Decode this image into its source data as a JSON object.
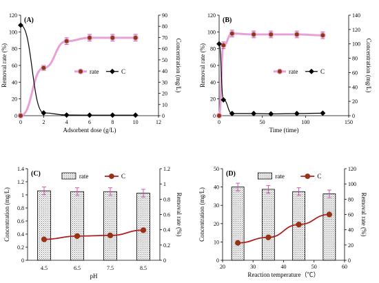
{
  "colors": {
    "rate_line": "#e8a0d8",
    "rate_marker": "#8b3a12",
    "c_line": "#000000",
    "bar_edge": "#000000",
    "hatch": "#555555",
    "error_bar": "#cc44aa"
  },
  "chart_data": [
    {
      "panel": "(A)",
      "type": "line",
      "xlabel": "Adsorbent dose  (g/L)",
      "ylabel_left": "Removal rate (%)",
      "ylabel_right": "Concentration (mg/L)",
      "xlim": [
        0,
        12
      ],
      "xticks": [
        0,
        2,
        4,
        6,
        8,
        10,
        12
      ],
      "ylim_left": [
        0,
        120
      ],
      "yticks_left": [
        0,
        20,
        40,
        60,
        80,
        100,
        120
      ],
      "ylim_right": [
        0,
        90
      ],
      "yticks_right": [
        0,
        10,
        20,
        30,
        40,
        50,
        60,
        70,
        80,
        90
      ],
      "legend": [
        "rate",
        "C"
      ],
      "legend_position": "middle-right",
      "series": [
        {
          "name": "rate",
          "axis": "left",
          "x": [
            0,
            2,
            4,
            6,
            8,
            10
          ],
          "values": [
            0,
            57,
            89,
            93,
            93,
            93
          ],
          "error": [
            0,
            3,
            4,
            4,
            4,
            4
          ]
        },
        {
          "name": "C",
          "axis": "right",
          "x": [
            0,
            2,
            4,
            6,
            8,
            10
          ],
          "values": [
            81,
            2.5,
            0.6,
            0.5,
            0.5,
            0.5
          ]
        }
      ]
    },
    {
      "panel": "(B)",
      "type": "line",
      "xlabel": "Time (time)",
      "ylabel_left": "Removal rate (%)",
      "ylabel_right": "Concentration (mg/L)",
      "xlim": [
        0,
        150
      ],
      "xticks": [
        0,
        50,
        100,
        150
      ],
      "ylim_left": [
        0,
        120
      ],
      "yticks_left": [
        0,
        20,
        40,
        60,
        80,
        100,
        120
      ],
      "ylim_right": [
        0,
        140
      ],
      "yticks_right": [
        0,
        20,
        40,
        60,
        80,
        100,
        120,
        140
      ],
      "legend": [
        "rate",
        "C"
      ],
      "legend_position": "middle-right",
      "series": [
        {
          "name": "rate",
          "axis": "left",
          "x": [
            0,
            5,
            15,
            40,
            60,
            90,
            120
          ],
          "values": [
            0,
            84,
            98,
            97,
            97,
            97,
            96
          ],
          "error": [
            0,
            4,
            4,
            4,
            4,
            4,
            4
          ]
        },
        {
          "name": "C",
          "axis": "right",
          "x": [
            0,
            5,
            15,
            40,
            60,
            90,
            120
          ],
          "values": [
            100,
            22,
            3,
            3,
            2.5,
            3,
            3.5
          ]
        }
      ]
    },
    {
      "panel": "(C)",
      "type": "bar",
      "xlabel": "pH",
      "ylabel_left": "Concentration (mg/L)",
      "ylabel_right": "Removal rate (%)",
      "categories": [
        "4.5",
        "6.5",
        "7.5",
        "8.5"
      ],
      "ylim_left": [
        0,
        1.4
      ],
      "yticks_left": [
        0,
        0.2,
        0.4,
        0.6,
        0.8,
        1,
        1.2,
        1.4
      ],
      "ylim_right": [
        0,
        1.2
      ],
      "yticks_right": [
        0,
        0.2,
        0.4,
        0.6,
        0.8,
        1,
        1.2
      ],
      "legend": [
        "rate",
        "C"
      ],
      "legend_position": "top",
      "series": [
        {
          "name": "rate",
          "kind": "bar",
          "axis": "right",
          "values": [
            0.91,
            0.9,
            0.9,
            0.88
          ],
          "error": [
            0.05,
            0.05,
            0.05,
            0.05
          ]
        },
        {
          "name": "C",
          "kind": "line",
          "axis": "left",
          "values": [
            0.32,
            0.37,
            0.38,
            0.46
          ]
        }
      ]
    },
    {
      "panel": "(D)",
      "type": "bar",
      "xlabel": "Reaction temperature（℃）",
      "ylabel_left": "Concentration (mg/L)",
      "ylabel_right": "Removal rate (%)",
      "xlim": [
        20,
        60
      ],
      "xticks": [
        20,
        30,
        40,
        50,
        60
      ],
      "x": [
        25,
        35,
        45,
        55
      ],
      "ylim_left": [
        0,
        50
      ],
      "yticks_left": [
        0,
        10,
        20,
        30,
        40,
        50
      ],
      "ylim_right": [
        0,
        120
      ],
      "yticks_right": [
        0,
        20,
        40,
        60,
        80,
        100,
        120
      ],
      "legend": [
        "rate",
        "C"
      ],
      "legend_position": "top",
      "series": [
        {
          "name": "rate",
          "kind": "bar",
          "axis": "right",
          "values": [
            96,
            93,
            90,
            87
          ],
          "error": [
            5,
            5,
            5,
            5
          ]
        },
        {
          "name": "C",
          "kind": "line",
          "axis": "left",
          "values": [
            9.5,
            12.5,
            19.5,
            25
          ]
        }
      ]
    }
  ]
}
